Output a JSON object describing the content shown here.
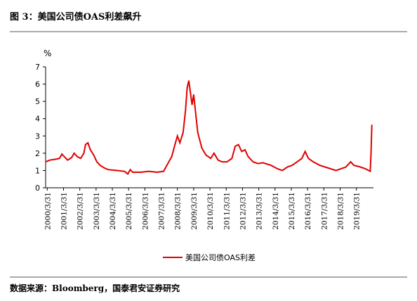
{
  "chart_data": {
    "type": "line",
    "title": "图 3：美国公司债OAS利差飙升",
    "y_label": "%",
    "source": "数据来源：Bloomberg，国泰君安证券研究",
    "xlim": [
      2000.15,
      2020.3
    ],
    "xticks": [
      {
        "value": 2000.25,
        "label": "2000/3/31"
      },
      {
        "value": 2001.25,
        "label": "2001/3/31"
      },
      {
        "value": 2002.25,
        "label": "2002/3/31"
      },
      {
        "value": 2003.25,
        "label": "2003/3/31"
      },
      {
        "value": 2004.25,
        "label": "2004/3/31"
      },
      {
        "value": 2005.25,
        "label": "2005/3/31"
      },
      {
        "value": 2006.25,
        "label": "2006/3/31"
      },
      {
        "value": 2007.25,
        "label": "2007/3/31"
      },
      {
        "value": 2008.25,
        "label": "2008/3/31"
      },
      {
        "value": 2009.25,
        "label": "2009/3/31"
      },
      {
        "value": 2010.25,
        "label": "2010/3/31"
      },
      {
        "value": 2011.25,
        "label": "2011/3/31"
      },
      {
        "value": 2012.25,
        "label": "2012/3/31"
      },
      {
        "value": 2013.25,
        "label": "2013/3/31"
      },
      {
        "value": 2014.25,
        "label": "2014/3/31"
      },
      {
        "value": 2015.25,
        "label": "2015/3/31"
      },
      {
        "value": 2016.25,
        "label": "2016/3/31"
      },
      {
        "value": 2017.25,
        "label": "2017/3/31"
      },
      {
        "value": 2018.25,
        "label": "2018/3/31"
      },
      {
        "value": 2019.25,
        "label": "2019/3/31"
      }
    ],
    "ylim": [
      0,
      7
    ],
    "yticks": [
      0,
      1,
      2,
      3,
      4,
      5,
      6,
      7
    ],
    "x": [
      2000.15,
      2000.4,
      2000.75,
      2001.0,
      2001.15,
      2001.3,
      2001.5,
      2001.75,
      2001.9,
      2002.1,
      2002.3,
      2002.5,
      2002.6,
      2002.75,
      2002.9,
      2003.1,
      2003.3,
      2003.5,
      2003.75,
      2004.0,
      2004.5,
      2005.0,
      2005.2,
      2005.35,
      2005.5,
      2006.0,
      2006.5,
      2007.0,
      2007.4,
      2007.6,
      2007.9,
      2008.1,
      2008.25,
      2008.4,
      2008.6,
      2008.75,
      2008.85,
      2008.95,
      2009.05,
      2009.15,
      2009.25,
      2009.35,
      2009.5,
      2009.75,
      2010.0,
      2010.3,
      2010.5,
      2010.75,
      2011.0,
      2011.3,
      2011.6,
      2011.8,
      2012.0,
      2012.2,
      2012.4,
      2012.6,
      2012.9,
      2013.2,
      2013.5,
      2014.0,
      2014.4,
      2014.7,
      2015.0,
      2015.3,
      2015.6,
      2015.9,
      2016.1,
      2016.3,
      2016.6,
      2017.0,
      2017.5,
      2018.0,
      2018.3,
      2018.6,
      2018.9,
      2019.1,
      2019.5,
      2019.8,
      2020.0,
      2020.1,
      2020.15,
      2020.2
    ],
    "series": [
      {
        "name": "美国公司债OAS利差",
        "color": "#e00000",
        "values": [
          1.5,
          1.6,
          1.65,
          1.7,
          1.95,
          1.8,
          1.6,
          1.75,
          2.0,
          1.8,
          1.7,
          2.0,
          2.5,
          2.6,
          2.2,
          1.9,
          1.5,
          1.3,
          1.15,
          1.05,
          1.0,
          0.95,
          0.8,
          1.05,
          0.9,
          0.9,
          0.95,
          0.9,
          0.95,
          1.3,
          1.8,
          2.5,
          3.0,
          2.6,
          3.2,
          4.5,
          5.8,
          6.2,
          5.5,
          4.8,
          5.4,
          4.5,
          3.2,
          2.3,
          1.9,
          1.7,
          2.0,
          1.6,
          1.5,
          1.5,
          1.7,
          2.4,
          2.5,
          2.1,
          2.2,
          1.8,
          1.5,
          1.4,
          1.45,
          1.3,
          1.1,
          1.0,
          1.2,
          1.3,
          1.5,
          1.7,
          2.1,
          1.7,
          1.5,
          1.3,
          1.15,
          1.0,
          1.1,
          1.2,
          1.5,
          1.3,
          1.2,
          1.1,
          1.0,
          0.95,
          2.0,
          3.65
        ]
      }
    ]
  }
}
